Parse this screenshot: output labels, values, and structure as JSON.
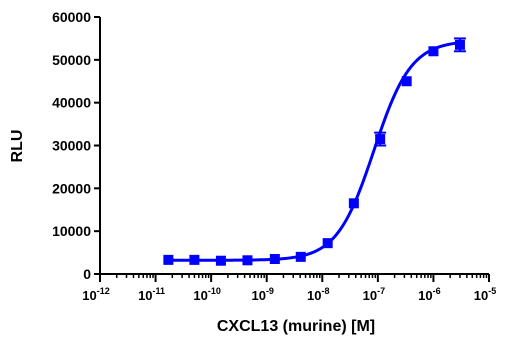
{
  "chart_data": {
    "type": "scatter",
    "title": "",
    "xlabel": "CXCL13 (murine) [M]",
    "ylabel": "RLU",
    "x_scale": "log10",
    "xlim": [
      1e-12,
      1e-05
    ],
    "ylim": [
      0,
      60000
    ],
    "y_ticks": [
      "0",
      "10000",
      "20000",
      "30000",
      "40000",
      "50000",
      "60000"
    ],
    "x_ticks": [
      {
        "base": "10",
        "exp": "-12",
        "value": 1e-12
      },
      {
        "base": "10",
        "exp": "-11",
        "value": 1e-11
      },
      {
        "base": "10",
        "exp": "-10",
        "value": 1e-10
      },
      {
        "base": "10",
        "exp": "-9",
        "value": 1e-09
      },
      {
        "base": "10",
        "exp": "-8",
        "value": 1e-08
      },
      {
        "base": "10",
        "exp": "-7",
        "value": 1e-07
      },
      {
        "base": "10",
        "exp": "-6",
        "value": 1e-06
      },
      {
        "base": "10",
        "exp": "-5",
        "value": 1e-05
      }
    ],
    "grid": false,
    "color": "#0000ff",
    "marker": "square",
    "points": [
      {
        "x": 1.7e-11,
        "y": 3300
      },
      {
        "x": 5e-11,
        "y": 3300
      },
      {
        "x": 1.5e-10,
        "y": 3100
      },
      {
        "x": 4.5e-10,
        "y": 3200
      },
      {
        "x": 1.4e-09,
        "y": 3500
      },
      {
        "x": 4.1e-09,
        "y": 4000
      },
      {
        "x": 1.25e-08,
        "y": 7200
      },
      {
        "x": 3.7e-08,
        "y": 16500
      },
      {
        "x": 1.1e-07,
        "y": 31500,
        "err": 1500
      },
      {
        "x": 3.3e-07,
        "y": 45000
      },
      {
        "x": 1e-06,
        "y": 52000
      },
      {
        "x": 3e-06,
        "y": 53500,
        "err": 1500
      }
    ],
    "fit": {
      "model": "four-parameter logistic",
      "bottom": 3200,
      "top": 54500,
      "ec50": 8.5e-08,
      "hill": 1.3
    }
  }
}
